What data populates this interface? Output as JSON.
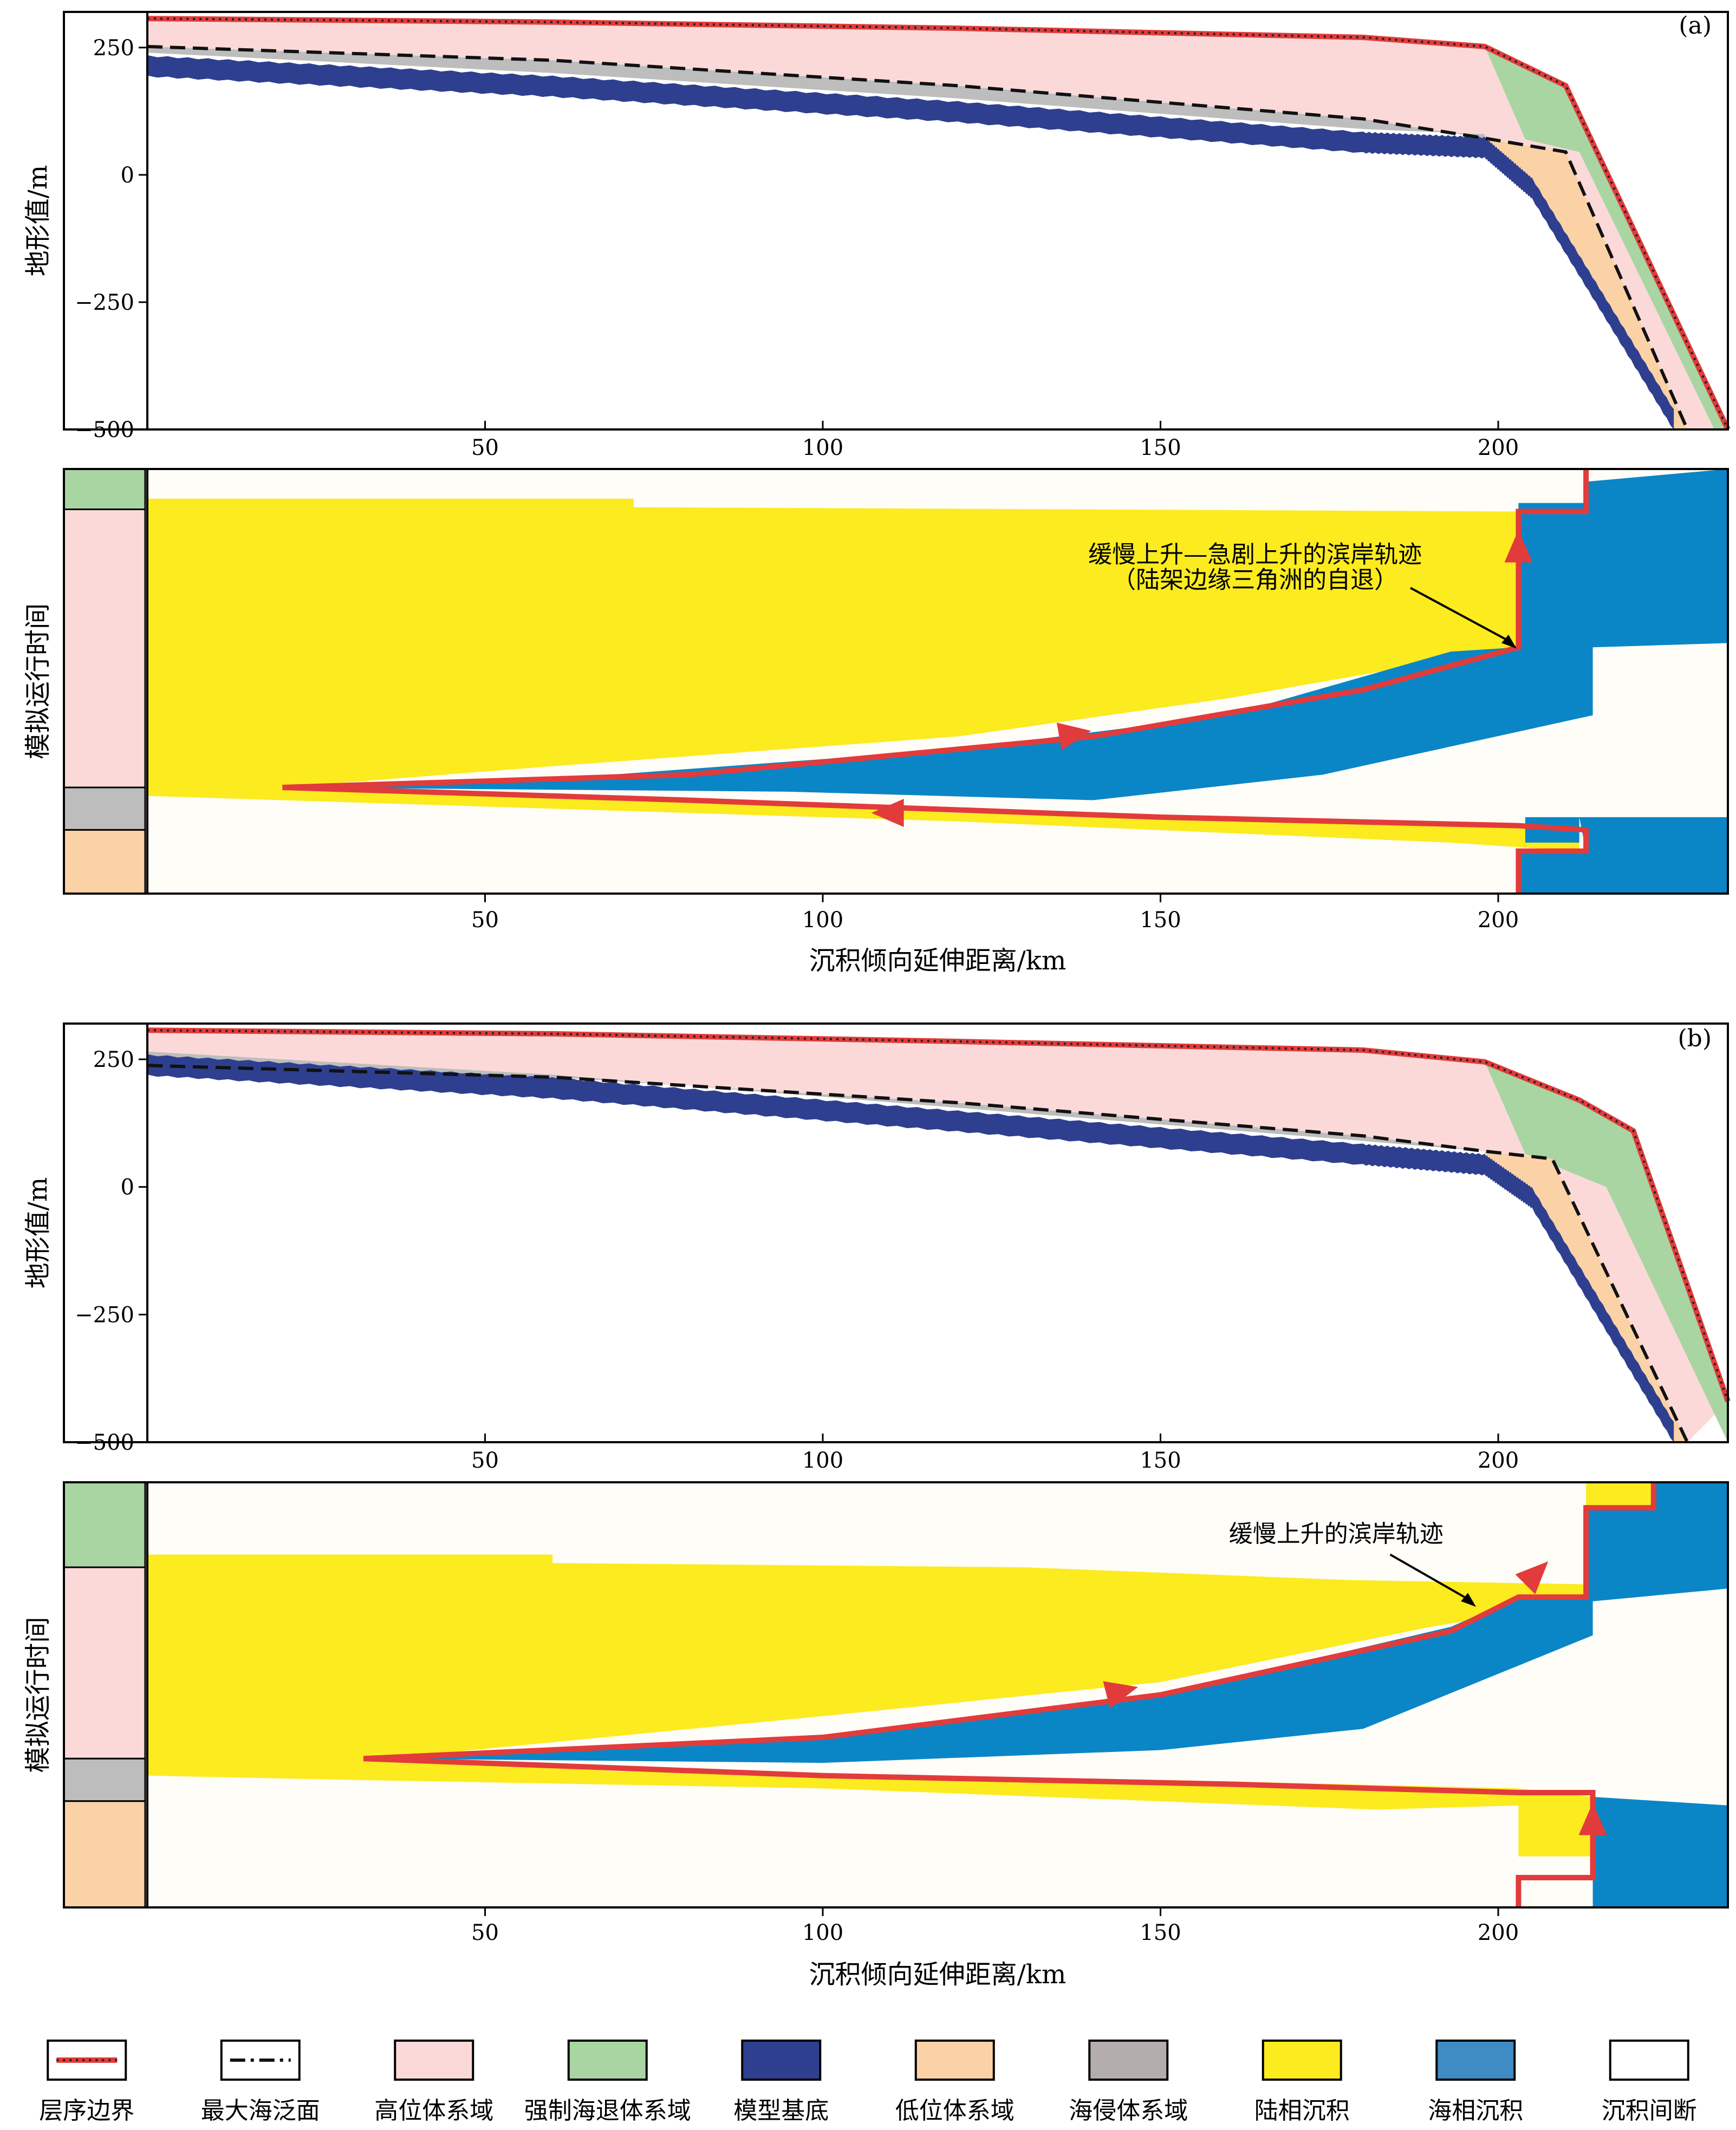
{
  "chart_data": [
    {
      "panel": "(a)",
      "type": "area",
      "topography": {
        "ylabel": "地形值/m",
        "yticks": [
          250,
          0,
          -250,
          -500
        ],
        "xticks": [
          50,
          100,
          150,
          200
        ],
        "ylim": [
          -500,
          320
        ],
        "xlim": [
          0,
          234
        ],
        "sequence_boundary": [
          [
            0,
            307
          ],
          [
            60,
            300
          ],
          [
            120,
            288
          ],
          [
            180,
            270
          ],
          [
            198,
            252
          ],
          [
            210,
            175
          ],
          [
            234,
            -500
          ]
        ],
        "max_flooding_surface": [
          [
            0,
            252
          ],
          [
            60,
            225
          ],
          [
            120,
            175
          ],
          [
            180,
            110
          ],
          [
            198,
            72
          ],
          [
            210,
            45
          ],
          [
            228,
            -500
          ]
        ],
        "base": [
          [
            0,
            195
          ],
          [
            60,
            155
          ],
          [
            120,
            105
          ],
          [
            180,
            45
          ],
          [
            198,
            35
          ],
          [
            205,
            -45
          ],
          [
            226,
            -500
          ]
        ],
        "marine_erosion_top": [
          [
            0,
            250
          ],
          [
            60,
            220
          ],
          [
            120,
            165
          ],
          [
            180,
            100
          ],
          [
            198,
            70
          ]
        ],
        "forced_regression_base": [
          [
            204,
            70
          ],
          [
            212,
            45
          ],
          [
            232,
            -500
          ]
        ]
      },
      "chronostrat": {
        "ylabel": "模拟运行时间",
        "xlabel": "沉积倾向延伸距离/km",
        "xticks": [
          50,
          100,
          150,
          200
        ],
        "tracts": [
          {
            "name": "强制海退体系域",
            "from": 0.0,
            "to": 0.095
          },
          {
            "name": "高位体系域",
            "from": 0.095,
            "to": 0.75
          },
          {
            "name": "海侵体系域",
            "from": 0.75,
            "to": 0.85
          },
          {
            "name": "低位体系域",
            "from": 0.85,
            "to": 1.0
          }
        ],
        "annotation": [
          "缓慢上升—急剧上升的滨岸轨迹",
          "（陆架边缘三角洲的自退）"
        ]
      }
    },
    {
      "panel": "(b)",
      "type": "area",
      "topography": {
        "ylabel": "地形值/m",
        "yticks": [
          250,
          0,
          -250,
          -500
        ],
        "xticks": [
          50,
          100,
          150,
          200
        ],
        "ylim": [
          -500,
          320
        ],
        "xlim": [
          0,
          234
        ],
        "sequence_boundary": [
          [
            0,
            307
          ],
          [
            60,
            300
          ],
          [
            120,
            285
          ],
          [
            180,
            268
          ],
          [
            198,
            245
          ],
          [
            212,
            170
          ],
          [
            220,
            110
          ],
          [
            234,
            -420
          ]
        ],
        "max_flooding_surface": [
          [
            0,
            238
          ],
          [
            60,
            215
          ],
          [
            120,
            165
          ],
          [
            180,
            100
          ],
          [
            198,
            70
          ],
          [
            208,
            55
          ],
          [
            228,
            -500
          ]
        ],
        "base": [
          [
            0,
            220
          ],
          [
            60,
            175
          ],
          [
            120,
            110
          ],
          [
            180,
            45
          ],
          [
            198,
            25
          ],
          [
            205,
            -40
          ],
          [
            226,
            -500
          ]
        ],
        "marine_erosion_top": [
          [
            0,
            238
          ],
          [
            60,
            210
          ],
          [
            120,
            160
          ],
          [
            180,
            95
          ],
          [
            198,
            68
          ]
        ],
        "forced_regression_base": [
          [
            204,
            65
          ],
          [
            216,
            0
          ],
          [
            234,
            -500
          ]
        ]
      },
      "chronostrat": {
        "ylabel": "模拟运行时间",
        "xlabel": "沉积倾向延伸距离/km",
        "xticks": [
          50,
          100,
          150,
          200
        ],
        "tracts": [
          {
            "name": "强制海退体系域",
            "from": 0.0,
            "to": 0.2
          },
          {
            "name": "高位体系域",
            "from": 0.2,
            "to": 0.65
          },
          {
            "name": "海侵体系域",
            "from": 0.65,
            "to": 0.75
          },
          {
            "name": "低位体系域",
            "from": 0.75,
            "to": 1.0
          }
        ],
        "annotation": [
          "缓慢上升的滨岸轨迹"
        ]
      }
    }
  ],
  "legend": [
    {
      "label": "层序边界",
      "kind": "dotted-line",
      "color": "#e23b3b"
    },
    {
      "label": "最大海泛面",
      "kind": "dash-line",
      "color": "#111111"
    },
    {
      "label": "高位体系域",
      "kind": "box",
      "color": "#fcd9d9"
    },
    {
      "label": "强制海退体系域",
      "kind": "box",
      "color": "#a8d5a2"
    },
    {
      "label": "模型基底",
      "kind": "box",
      "color": "#2e3f8f"
    },
    {
      "label": "低位体系域",
      "kind": "box",
      "color": "#fbd2a6"
    },
    {
      "label": "海侵体系域",
      "kind": "box",
      "color": "#b3adad"
    },
    {
      "label": "陆相沉积",
      "kind": "box",
      "color": "#fbeb1f"
    },
    {
      "label": "海相沉积",
      "kind": "box",
      "color": "#3f8bc3"
    },
    {
      "label": "沉积间断",
      "kind": "box",
      "color": "#ffffff"
    }
  ],
  "colors": {
    "hst": "#fcd9d9",
    "fsst": "#a8d5a2",
    "base": "#2e3f8f",
    "lst": "#fbd2a6",
    "tst": "#bdbdbd",
    "terrestrial": "#fbeb1f",
    "marine": "#0a86c7",
    "hiatus": "#fffdf8",
    "trajectory": "#e23b3b"
  }
}
